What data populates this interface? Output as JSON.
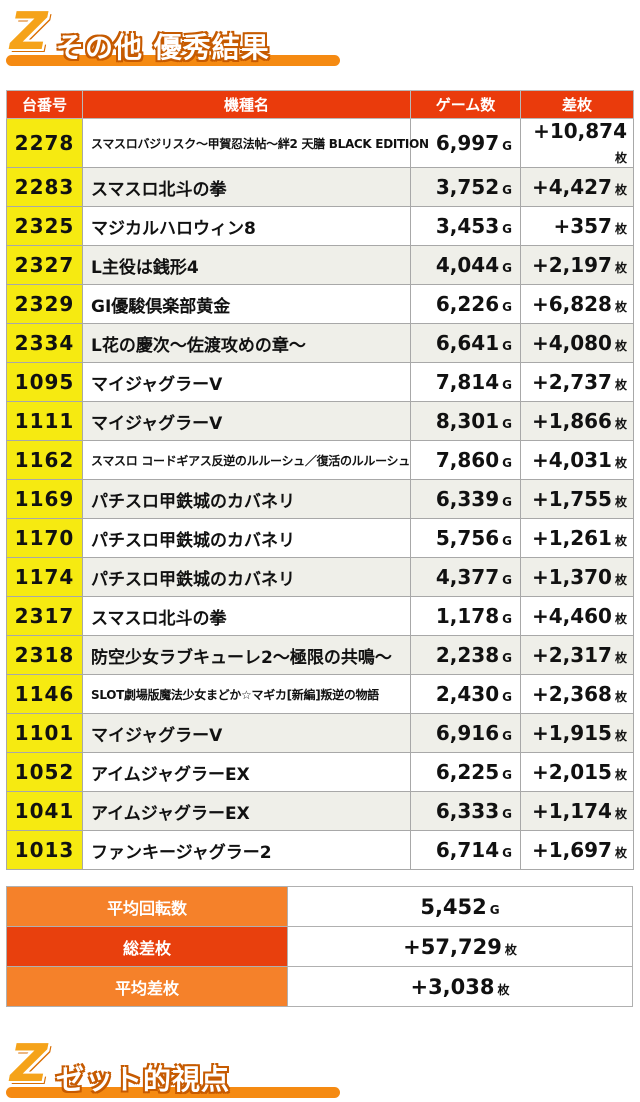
{
  "section1": {
    "letter": "Z",
    "title": "その他 優秀結果"
  },
  "table": {
    "headers": {
      "machine_no": "台番号",
      "model": "機種名",
      "games": "ゲーム数",
      "diff": "差枚"
    },
    "games_unit": "G",
    "diff_unit": "枚",
    "rows": [
      {
        "no": "2278",
        "model": "スマスロバジリスク～甲賀忍法帖～絆2 天膳 BLACK EDITION",
        "games": "6,997",
        "diff": "+10,874",
        "small": true
      },
      {
        "no": "2283",
        "model": "スマスロ北斗の拳",
        "games": "3,752",
        "diff": "+4,427"
      },
      {
        "no": "2325",
        "model": "マジカルハロウィン8",
        "games": "3,453",
        "diff": "+357"
      },
      {
        "no": "2327",
        "model": "L主役は銭形4",
        "games": "4,044",
        "diff": "+2,197"
      },
      {
        "no": "2329",
        "model": "GI優駿倶楽部黄金",
        "games": "6,226",
        "diff": "+6,828"
      },
      {
        "no": "2334",
        "model": "L花の慶次～佐渡攻めの章～",
        "games": "6,641",
        "diff": "+4,080"
      },
      {
        "no": "1095",
        "model": "マイジャグラーV",
        "games": "7,814",
        "diff": "+2,737"
      },
      {
        "no": "1111",
        "model": "マイジャグラーV",
        "games": "8,301",
        "diff": "+1,866"
      },
      {
        "no": "1162",
        "model": "スマスロ コードギアス反逆のルルーシュ／復活のルルーシュ",
        "games": "7,860",
        "diff": "+4,031",
        "small": true
      },
      {
        "no": "1169",
        "model": "パチスロ甲鉄城のカバネリ",
        "games": "6,339",
        "diff": "+1,755"
      },
      {
        "no": "1170",
        "model": "パチスロ甲鉄城のカバネリ",
        "games": "5,756",
        "diff": "+1,261"
      },
      {
        "no": "1174",
        "model": "パチスロ甲鉄城のカバネリ",
        "games": "4,377",
        "diff": "+1,370"
      },
      {
        "no": "2317",
        "model": "スマスロ北斗の拳",
        "games": "1,178",
        "diff": "+4,460"
      },
      {
        "no": "2318",
        "model": "防空少女ラブキューレ2～極限の共鳴～",
        "games": "2,238",
        "diff": "+2,317"
      },
      {
        "no": "1146",
        "model": "SLOT劇場版魔法少女まどか☆マギカ[新編]叛逆の物語",
        "games": "2,430",
        "diff": "+2,368",
        "small": true
      },
      {
        "no": "1101",
        "model": "マイジャグラーV",
        "games": "6,916",
        "diff": "+1,915"
      },
      {
        "no": "1052",
        "model": "アイムジャグラーEX",
        "games": "6,225",
        "diff": "+2,015"
      },
      {
        "no": "1041",
        "model": "アイムジャグラーEX",
        "games": "6,333",
        "diff": "+1,174"
      },
      {
        "no": "1013",
        "model": "ファンキージャグラー2",
        "games": "6,714",
        "diff": "+1,697"
      }
    ]
  },
  "summary": {
    "avg_games_label": "平均回転数",
    "avg_games": "5,452",
    "avg_games_unit": "G",
    "total_diff_label": "総差枚",
    "total_diff": "+57,729",
    "total_diff_unit": "枚",
    "avg_diff_label": "平均差枚",
    "avg_diff": "+3,038",
    "avg_diff_unit": "枚"
  },
  "section2": {
    "letter": "Z",
    "title": "ゼット的視点"
  }
}
